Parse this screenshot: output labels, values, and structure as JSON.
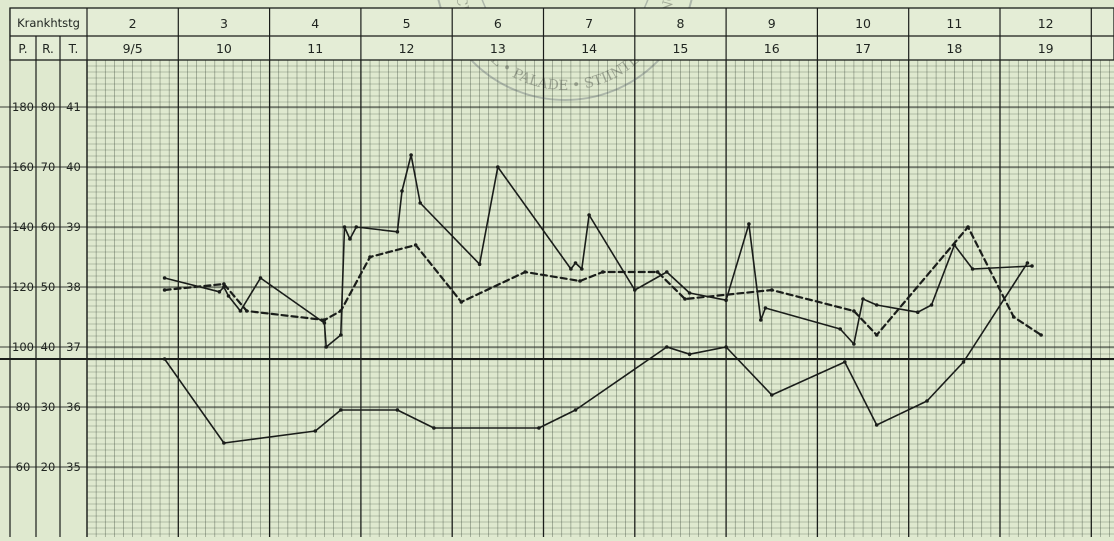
{
  "chart_data": {
    "type": "line",
    "header": {
      "corner_label": "Krankhtstg",
      "scale_labels": [
        "P.",
        "R.",
        "T."
      ],
      "days": [
        "2",
        "3",
        "4",
        "5",
        "6",
        "7",
        "8",
        "9",
        "10",
        "11",
        "12"
      ],
      "dates": [
        "9/5",
        "10",
        "11",
        "12",
        "13",
        "14",
        "15",
        "16",
        "17",
        "18",
        "19"
      ]
    },
    "y_ticks": [
      {
        "p": "180",
        "r": "80",
        "t": "41"
      },
      {
        "p": "160",
        "r": "70",
        "t": "40"
      },
      {
        "p": "140",
        "r": "60",
        "t": "39"
      },
      {
        "p": "120",
        "r": "50",
        "t": "38"
      },
      {
        "p": "100",
        "r": "40",
        "t": "37"
      },
      {
        "p": "80",
        "r": "30",
        "t": "36"
      },
      {
        "p": "60",
        "r": "20",
        "t": "35"
      }
    ],
    "x_range": [
      2,
      13
    ],
    "temperature_range": [
      34.6,
      41.8
    ],
    "grid": true,
    "series": [
      {
        "style": "solid",
        "scale": "temperature",
        "points": [
          [
            2.85,
            38.15
          ],
          [
            3.45,
            37.92
          ],
          [
            3.5,
            38.0
          ],
          [
            3.55,
            37.85
          ],
          [
            3.68,
            37.6
          ],
          [
            3.9,
            38.15
          ],
          [
            4.6,
            37.4
          ],
          [
            4.62,
            37.0
          ],
          [
            4.78,
            37.2
          ],
          [
            4.82,
            39.0
          ],
          [
            4.88,
            38.8
          ],
          [
            4.95,
            39.0
          ],
          [
            5.4,
            38.92
          ],
          [
            5.45,
            39.6
          ],
          [
            5.55,
            40.2
          ],
          [
            5.65,
            39.4
          ],
          [
            6.3,
            38.38
          ],
          [
            6.5,
            40.0
          ],
          [
            7.3,
            38.3
          ],
          [
            7.35,
            38.4
          ],
          [
            7.42,
            38.3
          ],
          [
            7.5,
            39.2
          ],
          [
            8.0,
            37.95
          ],
          [
            8.35,
            38.25
          ],
          [
            8.6,
            37.9
          ],
          [
            9.0,
            37.78
          ],
          [
            9.25,
            39.05
          ],
          [
            9.38,
            37.45
          ],
          [
            9.43,
            37.65
          ],
          [
            10.25,
            37.3
          ],
          [
            10.4,
            37.05
          ],
          [
            10.5,
            37.8
          ],
          [
            10.65,
            37.7
          ],
          [
            11.1,
            37.58
          ],
          [
            11.25,
            37.7
          ],
          [
            11.5,
            38.7
          ],
          [
            11.7,
            38.3
          ],
          [
            12.35,
            38.35
          ]
        ]
      },
      {
        "style": "dashed",
        "scale": "temperature",
        "points": [
          [
            2.85,
            37.95
          ],
          [
            3.5,
            38.05
          ],
          [
            3.75,
            37.6
          ],
          [
            4.6,
            37.45
          ],
          [
            4.78,
            37.6
          ],
          [
            5.1,
            38.5
          ],
          [
            5.6,
            38.7
          ],
          [
            6.1,
            37.75
          ],
          [
            6.8,
            38.25
          ],
          [
            7.4,
            38.1
          ],
          [
            7.65,
            38.25
          ],
          [
            8.25,
            38.25
          ],
          [
            8.55,
            37.8
          ],
          [
            9.5,
            37.95
          ],
          [
            10.4,
            37.6
          ],
          [
            10.65,
            37.2
          ],
          [
            11.65,
            39.0
          ],
          [
            12.15,
            37.5
          ],
          [
            12.45,
            37.2
          ]
        ]
      },
      {
        "style": "solid",
        "scale": "temperature",
        "points": [
          [
            2.85,
            36.8
          ],
          [
            3.5,
            35.4
          ],
          [
            4.5,
            35.6
          ],
          [
            4.78,
            35.95
          ],
          [
            5.4,
            35.95
          ],
          [
            5.8,
            35.65
          ],
          [
            6.95,
            35.65
          ],
          [
            7.35,
            35.95
          ],
          [
            8.35,
            37.0
          ],
          [
            8.6,
            36.88
          ],
          [
            9.0,
            37.0
          ],
          [
            9.5,
            36.2
          ],
          [
            10.3,
            36.75
          ],
          [
            10.65,
            35.7
          ],
          [
            11.2,
            36.1
          ],
          [
            11.6,
            36.75
          ],
          [
            12.3,
            38.4
          ]
        ]
      }
    ],
    "stamp": [
      "FARMACIE",
      "EMIL",
      "PALADE",
      "STIINTE SI TEHNOLOGIE"
    ]
  }
}
